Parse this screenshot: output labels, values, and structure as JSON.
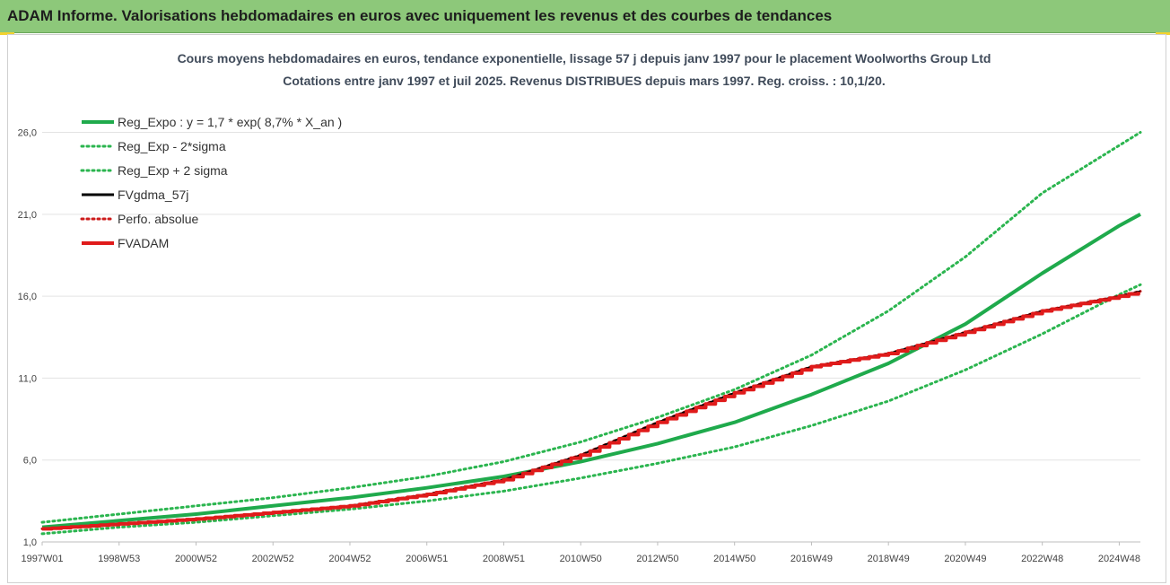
{
  "banner": {
    "title": "ADAM Informe. Valorisations hebdomadaires en euros avec uniquement les revenus et des courbes de tendances"
  },
  "chart_data": {
    "type": "line",
    "title": "Cours moyens hebdomadaires en euros, tendance exponentielle, lissage 57 j depuis janv 1997 pour le placement Woolworths Group Ltd",
    "subtitle": "Cotations entre janv 1997 et juil 2025. Revenus DISTRIBUES depuis mars 1997. Reg. croiss. : 10,1/20.",
    "xlabel": "",
    "ylabel": "",
    "ylim": [
      1,
      28
    ],
    "yticks": [
      1,
      6,
      11,
      16,
      21,
      26
    ],
    "ytick_labels": [
      "1,0",
      "6,0",
      "11,0",
      "16,0",
      "21,0",
      "26,0"
    ],
    "x_range": [
      1997.0,
      2025.55
    ],
    "xtick_labels": [
      "1997W01",
      "1998W53",
      "2000W52",
      "2002W52",
      "2004W52",
      "2006W51",
      "2008W51",
      "2010W50",
      "2012W50",
      "2014W50",
      "2016W49",
      "2018W49",
      "2020W49",
      "2022W48",
      "2024W48"
    ],
    "xticks": [
      1997.0,
      1999.0,
      2001.0,
      2003.0,
      2005.0,
      2007.0,
      2009.0,
      2011.0,
      2013.0,
      2015.0,
      2017.0,
      2019.0,
      2021.0,
      2023.0,
      2025.0
    ],
    "legend_position": "top-left",
    "grid": "horizontal",
    "x_years": [
      1997.0,
      1999.0,
      2001.0,
      2003.0,
      2005.0,
      2007.0,
      2009.0,
      2011.0,
      2013.0,
      2015.0,
      2017.0,
      2019.0,
      2021.0,
      2023.0,
      2025.0,
      2025.55
    ],
    "series": [
      {
        "name": "Reg_Expo : y = 1,7 * exp( 8,7% *  X_an )",
        "color": "#1faa4c",
        "style": "solid",
        "x": [
          1997.0,
          1999.0,
          2001.0,
          2003.0,
          2005.0,
          2007.0,
          2009.0,
          2011.0,
          2013.0,
          2015.0,
          2017.0,
          2019.0,
          2021.0,
          2023.0,
          2025.0,
          2025.55
        ],
        "values": [
          1.9,
          2.3,
          2.7,
          3.2,
          3.7,
          4.3,
          5.0,
          5.9,
          7.0,
          8.3,
          10.0,
          11.9,
          14.3,
          17.4,
          20.3,
          21.0
        ]
      },
      {
        "name": "Reg_Exp - 2*sigma",
        "color": "#2bb54f",
        "style": "dotted",
        "x": [
          1997.0,
          1999.0,
          2001.0,
          2003.0,
          2005.0,
          2007.0,
          2009.0,
          2011.0,
          2013.0,
          2015.0,
          2017.0,
          2019.0,
          2021.0,
          2023.0,
          2025.0,
          2025.55
        ],
        "values": [
          1.5,
          1.9,
          2.2,
          2.6,
          3.0,
          3.5,
          4.1,
          4.9,
          5.8,
          6.8,
          8.1,
          9.6,
          11.5,
          13.7,
          16.1,
          16.7
        ]
      },
      {
        "name": "Reg_Exp + 2 sigma",
        "color": "#2bb54f",
        "style": "dotted",
        "x": [
          1997.0,
          1999.0,
          2001.0,
          2003.0,
          2005.0,
          2007.0,
          2009.0,
          2011.0,
          2013.0,
          2015.0,
          2017.0,
          2019.0,
          2021.0,
          2023.0,
          2025.0,
          2025.55
        ],
        "values": [
          2.2,
          2.7,
          3.2,
          3.7,
          4.3,
          5.0,
          5.9,
          7.1,
          8.6,
          10.3,
          12.4,
          15.1,
          18.4,
          22.3,
          25.2,
          26.0
        ]
      },
      {
        "name": "FVgdma_57j",
        "color": "#000000",
        "style": "solid",
        "x": [
          1997.0,
          1999.0,
          2001.0,
          2003.0,
          2005.0,
          2007.0,
          2009.0,
          2011.0,
          2013.0,
          2015.0,
          2017.0,
          2019.0,
          2021.0,
          2023.0,
          2025.0,
          2025.55
        ],
        "values": [
          1.8,
          2.1,
          2.4,
          2.8,
          3.2,
          3.9,
          4.8,
          6.3,
          8.3,
          10.1,
          11.7,
          12.5,
          13.8,
          15.1,
          16.0,
          16.3
        ]
      },
      {
        "name": "Perfo. absolue",
        "color": "#cc1a1a",
        "style": "dotted",
        "x": [
          1997.0,
          1999.0,
          2001.0,
          2003.0,
          2005.0,
          2007.0,
          2009.0,
          2011.0,
          2013.0,
          2015.0,
          2017.0,
          2019.0,
          2021.0,
          2023.0,
          2025.0,
          2025.55
        ],
        "values": [
          1.8,
          2.1,
          2.4,
          2.8,
          3.2,
          3.9,
          4.8,
          6.3,
          8.3,
          10.1,
          11.7,
          12.5,
          13.8,
          15.1,
          16.0,
          16.3
        ]
      },
      {
        "name": "FVADAM",
        "color": "#e01b1b",
        "style": "solid",
        "stepped": true,
        "x": [
          1997.0,
          1999.0,
          2001.0,
          2003.0,
          2005.0,
          2007.0,
          2009.0,
          2011.0,
          2013.0,
          2015.0,
          2017.0,
          2019.0,
          2021.0,
          2023.0,
          2025.0,
          2025.55
        ],
        "values": [
          1.8,
          2.1,
          2.4,
          2.8,
          3.2,
          3.9,
          4.8,
          6.3,
          8.3,
          10.1,
          11.7,
          12.5,
          13.8,
          15.1,
          16.0,
          16.3
        ]
      }
    ]
  }
}
